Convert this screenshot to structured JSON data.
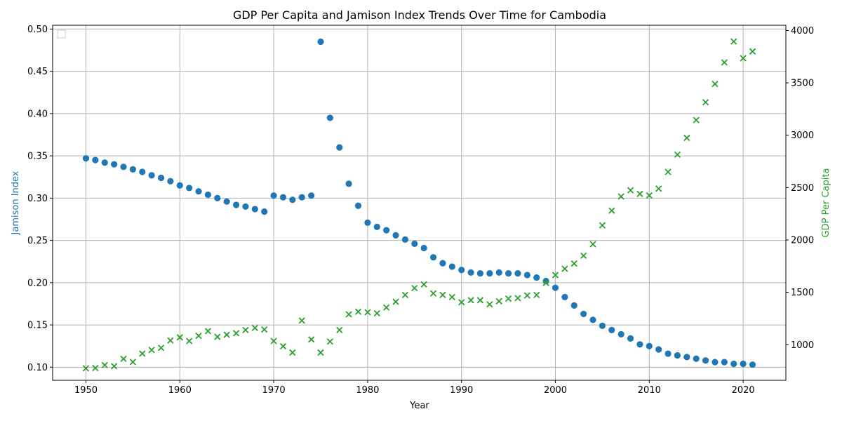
{
  "chart_data": {
    "type": "scatter",
    "title": "GDP Per Capita and Jamison Index Trends Over Time for Cambodia",
    "xlabel": "Year",
    "ylabel_left": "Jamison Index",
    "ylabel_right": "GDP Per Capita",
    "xlim": [
      1946.45,
      2024.55
    ],
    "ylim_left": [
      0.0845,
      0.5045
    ],
    "ylim_right": [
      660,
      4050
    ],
    "x_ticks": [
      1950,
      1960,
      1970,
      1980,
      1990,
      2000,
      2010,
      2020
    ],
    "y_ticks_left": [
      0.1,
      0.15,
      0.2,
      0.25,
      0.3,
      0.35,
      0.4,
      0.45,
      0.5
    ],
    "y_tick_labels_left": [
      "0.10",
      "0.15",
      "0.20",
      "0.25",
      "0.30",
      "0.35",
      "0.40",
      "0.45",
      "0.50"
    ],
    "y_ticks_right": [
      1000,
      1500,
      2000,
      2500,
      3000,
      3500,
      4000
    ],
    "grid": true,
    "legend": "upper-left (empty)",
    "colors": {
      "jamison": "#1f77b4",
      "gdp": "#2ca02c"
    },
    "series": [
      {
        "axis": "left",
        "marker": "circle",
        "x": [
          1950,
          1951,
          1952,
          1953,
          1954,
          1955,
          1956,
          1957,
          1958,
          1959,
          1960,
          1961,
          1962,
          1963,
          1964,
          1965,
          1966,
          1967,
          1968,
          1969,
          1970,
          1971,
          1972,
          1973,
          1974,
          1975,
          1976,
          1977,
          1978,
          1979,
          1980,
          1981,
          1982,
          1983,
          1984,
          1985,
          1986,
          1987,
          1988,
          1989,
          1990,
          1991,
          1992,
          1993,
          1994,
          1995,
          1996,
          1997,
          1998,
          1999,
          2000,
          2001,
          2002,
          2003,
          2004,
          2005,
          2006,
          2007,
          2008,
          2009,
          2010,
          2011,
          2012,
          2013,
          2014,
          2015,
          2016,
          2017,
          2018,
          2019,
          2020,
          2021
        ],
        "y": [
          0.347,
          0.345,
          0.342,
          0.34,
          0.337,
          0.334,
          0.331,
          0.327,
          0.324,
          0.32,
          0.315,
          0.312,
          0.308,
          0.304,
          0.3,
          0.296,
          0.292,
          0.29,
          0.287,
          0.284,
          0.303,
          0.301,
          0.298,
          0.301,
          0.303,
          0.485,
          0.395,
          0.36,
          0.317,
          0.291,
          0.271,
          0.266,
          0.262,
          0.256,
          0.251,
          0.246,
          0.241,
          0.23,
          0.223,
          0.219,
          0.215,
          0.212,
          0.211,
          0.211,
          0.212,
          0.211,
          0.211,
          0.209,
          0.206,
          0.202,
          0.194,
          0.183,
          0.173,
          0.163,
          0.156,
          0.149,
          0.144,
          0.139,
          0.134,
          0.127,
          0.125,
          0.121,
          0.116,
          0.114,
          0.112,
          0.11,
          0.108,
          0.106,
          0.106,
          0.104,
          0.104,
          0.103
        ]
      },
      {
        "axis": "right",
        "marker": "x",
        "x": [
          1950,
          1951,
          1952,
          1953,
          1954,
          1955,
          1956,
          1957,
          1958,
          1959,
          1960,
          1961,
          1962,
          1963,
          1964,
          1965,
          1966,
          1967,
          1968,
          1969,
          1970,
          1971,
          1972,
          1973,
          1974,
          1975,
          1976,
          1977,
          1978,
          1979,
          1980,
          1981,
          1982,
          1983,
          1984,
          1985,
          1986,
          1987,
          1988,
          1989,
          1990,
          1991,
          1992,
          1993,
          1994,
          1995,
          1996,
          1997,
          1998,
          1999,
          2000,
          2001,
          2002,
          2003,
          2004,
          2005,
          2006,
          2007,
          2008,
          2009,
          2010,
          2011,
          2012,
          2013,
          2014,
          2015,
          2016,
          2017,
          2018,
          2019,
          2020,
          2021
        ],
        "y": [
          775,
          777,
          805,
          795,
          865,
          835,
          915,
          950,
          970,
          1040,
          1070,
          1035,
          1085,
          1130,
          1075,
          1095,
          1110,
          1140,
          1160,
          1145,
          1035,
          985,
          925,
          1230,
          1050,
          925,
          1030,
          1140,
          1290,
          1315,
          1310,
          1300,
          1355,
          1410,
          1475,
          1540,
          1575,
          1490,
          1475,
          1455,
          1405,
          1425,
          1425,
          1385,
          1415,
          1440,
          1445,
          1470,
          1475,
          1590,
          1665,
          1725,
          1775,
          1850,
          1960,
          2140,
          2280,
          2415,
          2475,
          2440,
          2425,
          2490,
          2650,
          2815,
          2975,
          3145,
          3315,
          3490,
          3695,
          3895,
          3735,
          3800
        ]
      }
    ]
  }
}
